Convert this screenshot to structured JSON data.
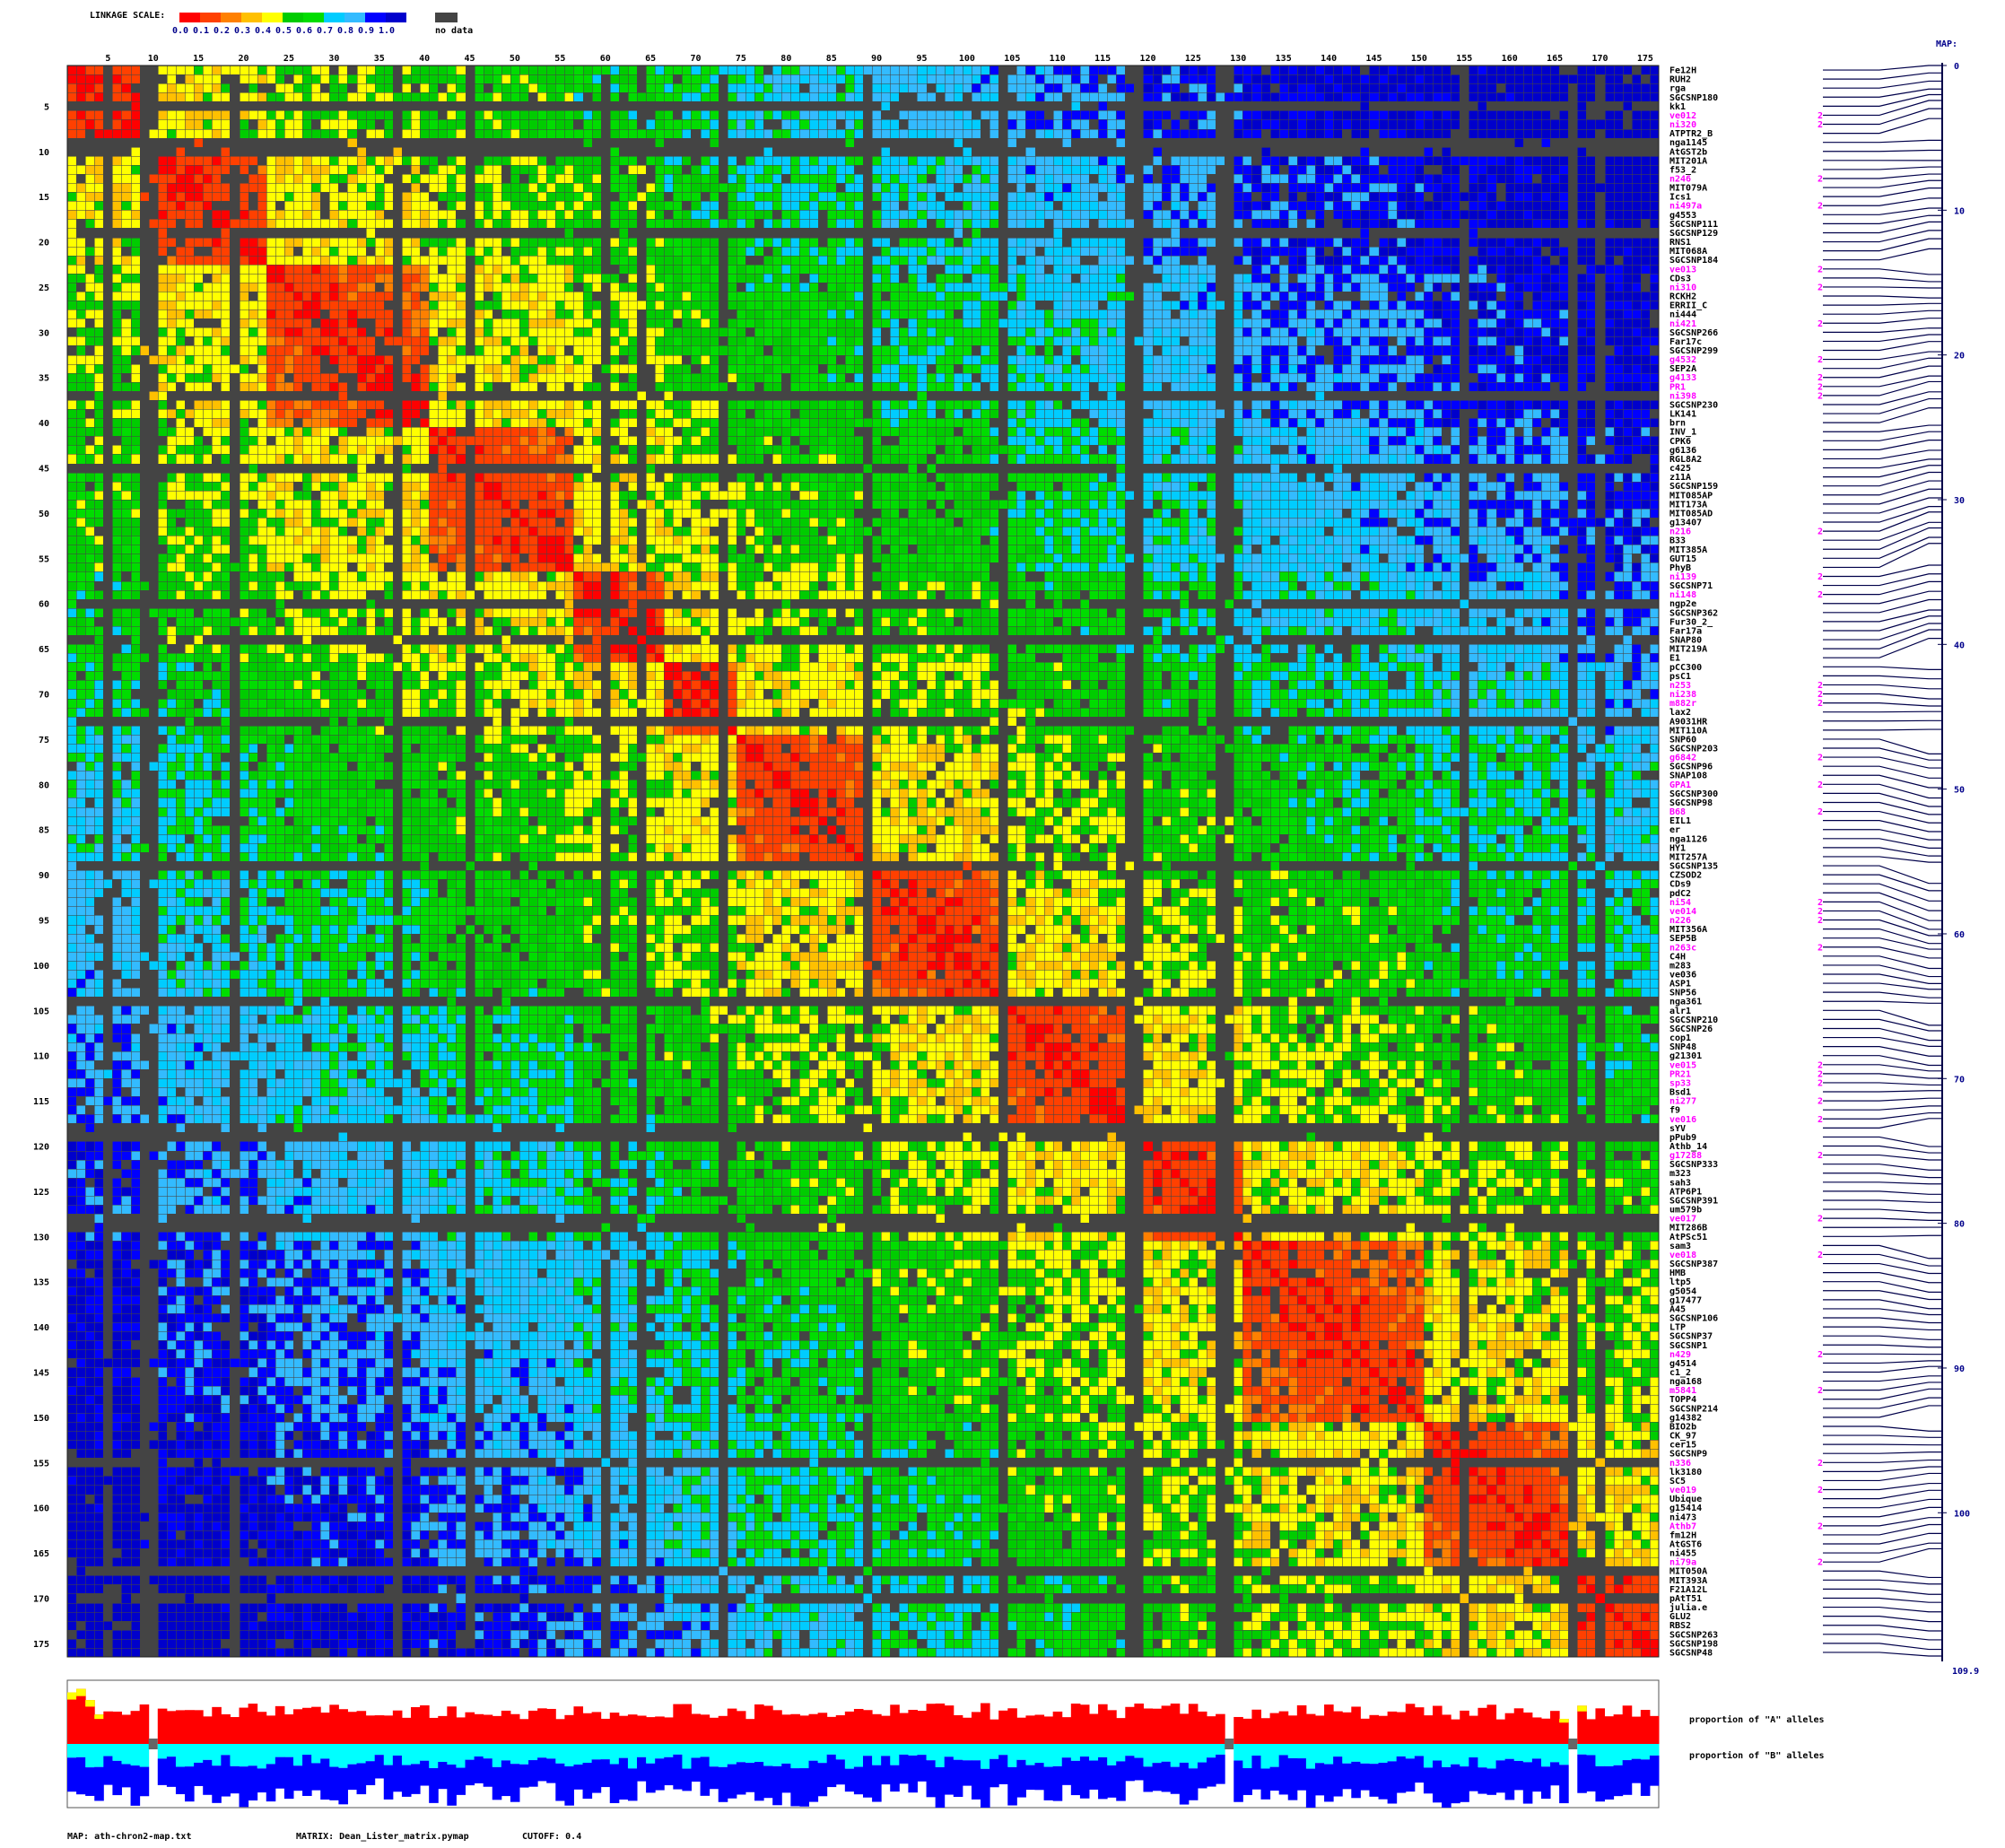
{
  "legend": {
    "title": "LINKAGE SCALE:",
    "ticks": [
      "0.0",
      "0.1",
      "0.2",
      "0.3",
      "0.4",
      "0.5",
      "0.6",
      "0.7",
      "0.8",
      "0.9",
      "1.0"
    ],
    "colors": [
      "#ff0000",
      "#ff4000",
      "#ff8000",
      "#ffc000",
      "#ffff00",
      "#00cc00",
      "#00dd00",
      "#00ccff",
      "#33bbff",
      "#0000ff",
      "#0000cc"
    ],
    "nodata_color": "#444444",
    "nodata_label": "no data"
  },
  "chart_data": {
    "type": "heatmap",
    "n_markers": 176,
    "x_ticks": [
      5,
      10,
      15,
      20,
      25,
      30,
      35,
      40,
      45,
      50,
      55,
      60,
      65,
      70,
      75,
      80,
      85,
      90,
      95,
      100,
      105,
      110,
      115,
      120,
      125,
      130,
      135,
      140,
      145,
      150,
      155,
      160,
      165,
      170,
      175
    ],
    "y_ticks": [
      5,
      10,
      15,
      20,
      25,
      30,
      35,
      40,
      45,
      50,
      55,
      60,
      65,
      70,
      75,
      80,
      85,
      90,
      95,
      100,
      105,
      110,
      115,
      120,
      125,
      130,
      135,
      140,
      145,
      150,
      155,
      160,
      165,
      170,
      175
    ],
    "value_range": [
      0.0,
      1.0
    ],
    "blocks": [
      [
        1,
        8
      ],
      [
        9,
        22
      ],
      [
        23,
        40
      ],
      [
        41,
        56
      ],
      [
        57,
        66
      ],
      [
        67,
        74
      ],
      [
        75,
        88
      ],
      [
        89,
        104
      ],
      [
        105,
        118
      ],
      [
        119,
        130
      ],
      [
        131,
        150
      ],
      [
        151,
        166
      ],
      [
        167,
        176
      ]
    ],
    "nodata_rows": [
      5,
      9,
      10,
      19,
      37,
      45,
      60,
      64,
      73,
      89,
      104,
      118,
      119,
      128,
      129,
      155,
      167,
      170
    ],
    "markers": [
      {
        "name": "Fe12H",
        "h": 0
      },
      {
        "name": "RUH2",
        "h": 0
      },
      {
        "name": "rga",
        "h": 0
      },
      {
        "name": "SGCSNP180",
        "h": 0
      },
      {
        "name": "kk1",
        "h": 0
      },
      {
        "name": "ve012",
        "h": 1
      },
      {
        "name": "ni320",
        "h": 1
      },
      {
        "name": "ATPTR2_B",
        "h": 0
      },
      {
        "name": "nga1145",
        "h": 0
      },
      {
        "name": "AtGST2b",
        "h": 0
      },
      {
        "name": "MIT201A",
        "h": 0
      },
      {
        "name": "f53_2",
        "h": 0
      },
      {
        "name": "n246",
        "h": 1
      },
      {
        "name": "MIT079A",
        "h": 0
      },
      {
        "name": "Ics1",
        "h": 0
      },
      {
        "name": "ni497a",
        "h": 1
      },
      {
        "name": "g4553",
        "h": 0
      },
      {
        "name": "SGCSNP111",
        "h": 0
      },
      {
        "name": "SGCSNP129",
        "h": 0
      },
      {
        "name": "RNS1",
        "h": 0
      },
      {
        "name": "MIT068A",
        "h": 0
      },
      {
        "name": "SGCSNP184",
        "h": 0
      },
      {
        "name": "ve013",
        "h": 1
      },
      {
        "name": "CDs3",
        "h": 0
      },
      {
        "name": "ni310",
        "h": 1
      },
      {
        "name": "RCKH2",
        "h": 0
      },
      {
        "name": "ERRII_C",
        "h": 0
      },
      {
        "name": "ni444",
        "h": 0
      },
      {
        "name": "ni421",
        "h": 1
      },
      {
        "name": "SGCSNP266",
        "h": 0
      },
      {
        "name": "Far17c",
        "h": 0
      },
      {
        "name": "SGCSNP299",
        "h": 0
      },
      {
        "name": "g4532",
        "h": 1
      },
      {
        "name": "SEP2A",
        "h": 0
      },
      {
        "name": "g4133",
        "h": 1
      },
      {
        "name": "PR1",
        "h": 1
      },
      {
        "name": "ni398",
        "h": 1
      },
      {
        "name": "SGCSNP230",
        "h": 0
      },
      {
        "name": "LK141",
        "h": 0
      },
      {
        "name": "brn",
        "h": 0
      },
      {
        "name": "INV_1",
        "h": 0
      },
      {
        "name": "CPK6",
        "h": 0
      },
      {
        "name": "g6136",
        "h": 0
      },
      {
        "name": "RGL8A2",
        "h": 0
      },
      {
        "name": "c425",
        "h": 0
      },
      {
        "name": "z11A",
        "h": 0
      },
      {
        "name": "SGCSNP159",
        "h": 0
      },
      {
        "name": "MIT085AP",
        "h": 0
      },
      {
        "name": "MIT173A",
        "h": 0
      },
      {
        "name": "MIT085AD",
        "h": 0
      },
      {
        "name": "g13407",
        "h": 0
      },
      {
        "name": "n216",
        "h": 1
      },
      {
        "name": "B33",
        "h": 0
      },
      {
        "name": "MIT385A",
        "h": 0
      },
      {
        "name": "GUT15",
        "h": 0
      },
      {
        "name": "PhyB",
        "h": 0
      },
      {
        "name": "ni139",
        "h": 1
      },
      {
        "name": "SGCSNP71",
        "h": 0
      },
      {
        "name": "ni148",
        "h": 1
      },
      {
        "name": "ngp2e",
        "h": 0
      },
      {
        "name": "SGCSNP362",
        "h": 0
      },
      {
        "name": "Fur30_2_",
        "h": 0
      },
      {
        "name": "Far17a",
        "h": 0
      },
      {
        "name": "SNAP80",
        "h": 0
      },
      {
        "name": "MIT219A",
        "h": 0
      },
      {
        "name": "E1",
        "h": 0
      },
      {
        "name": "pCC300",
        "h": 0
      },
      {
        "name": "psC1",
        "h": 0
      },
      {
        "name": "n253",
        "h": 1
      },
      {
        "name": "ni238",
        "h": 1
      },
      {
        "name": "m882r",
        "h": 1
      },
      {
        "name": "lax2",
        "h": 0
      },
      {
        "name": "A9031HR",
        "h": 0
      },
      {
        "name": "MIT110A",
        "h": 0
      },
      {
        "name": "SNP60",
        "h": 0
      },
      {
        "name": "SGCSNP203",
        "h": 0
      },
      {
        "name": "g6842",
        "h": 1
      },
      {
        "name": "SGCSNP96",
        "h": 0
      },
      {
        "name": "SNAP108",
        "h": 0
      },
      {
        "name": "GPA1",
        "h": 1
      },
      {
        "name": "SGCSNP300",
        "h": 0
      },
      {
        "name": "SGCSNP98",
        "h": 0
      },
      {
        "name": "B68",
        "h": 1
      },
      {
        "name": "EIL1",
        "h": 0
      },
      {
        "name": "er",
        "h": 0
      },
      {
        "name": "nga1126",
        "h": 0
      },
      {
        "name": "HY1",
        "h": 0
      },
      {
        "name": "MIT257A",
        "h": 0
      },
      {
        "name": "SGCSNP135",
        "h": 0
      },
      {
        "name": "CZSOD2",
        "h": 0
      },
      {
        "name": "CDs9",
        "h": 0
      },
      {
        "name": "pdC2",
        "h": 0
      },
      {
        "name": "ni54",
        "h": 1
      },
      {
        "name": "ve014",
        "h": 1
      },
      {
        "name": "n226",
        "h": 1
      },
      {
        "name": "MIT356A",
        "h": 0
      },
      {
        "name": "SEP5B",
        "h": 0
      },
      {
        "name": "n263c",
        "h": 1
      },
      {
        "name": "C4H",
        "h": 0
      },
      {
        "name": "m283",
        "h": 0
      },
      {
        "name": "ve036",
        "h": 0
      },
      {
        "name": "ASP1",
        "h": 0
      },
      {
        "name": "SNP56",
        "h": 0
      },
      {
        "name": "nga361",
        "h": 0
      },
      {
        "name": "alr1",
        "h": 0
      },
      {
        "name": "SGCSNP210",
        "h": 0
      },
      {
        "name": "SGCSNP26",
        "h": 0
      },
      {
        "name": "cop1",
        "h": 0
      },
      {
        "name": "SNP48",
        "h": 0
      },
      {
        "name": "g21301",
        "h": 0
      },
      {
        "name": "ve015",
        "h": 1
      },
      {
        "name": "PR21",
        "h": 1
      },
      {
        "name": "sp33",
        "h": 1
      },
      {
        "name": "Bsd1",
        "h": 0
      },
      {
        "name": "ni277",
        "h": 1
      },
      {
        "name": "f9",
        "h": 0
      },
      {
        "name": "ve016",
        "h": 1
      },
      {
        "name": "sYV",
        "h": 0
      },
      {
        "name": "pPub9",
        "h": 0
      },
      {
        "name": "Athb_14",
        "h": 0
      },
      {
        "name": "g17288",
        "h": 1
      },
      {
        "name": "SGCSNP333",
        "h": 0
      },
      {
        "name": "m323",
        "h": 0
      },
      {
        "name": "sah3",
        "h": 0
      },
      {
        "name": "ATP6P1",
        "h": 0
      },
      {
        "name": "SGCSNP391",
        "h": 0
      },
      {
        "name": "um579b",
        "h": 0
      },
      {
        "name": "ve017",
        "h": 1
      },
      {
        "name": "MIT286B",
        "h": 0
      },
      {
        "name": "AtPSc51",
        "h": 0
      },
      {
        "name": "sam3",
        "h": 0
      },
      {
        "name": "ve018",
        "h": 1
      },
      {
        "name": "SGCSNP387",
        "h": 0
      },
      {
        "name": "HMB",
        "h": 0
      },
      {
        "name": "ltp5",
        "h": 0
      },
      {
        "name": "g5054",
        "h": 0
      },
      {
        "name": "g17477",
        "h": 0
      },
      {
        "name": "A45",
        "h": 0
      },
      {
        "name": "SGCSNP106",
        "h": 0
      },
      {
        "name": "LTP",
        "h": 0
      },
      {
        "name": "SGCSNP37",
        "h": 0
      },
      {
        "name": "SGCSNP1",
        "h": 0
      },
      {
        "name": "n429",
        "h": 1
      },
      {
        "name": "g4514",
        "h": 0
      },
      {
        "name": "c1_2",
        "h": 0
      },
      {
        "name": "nga168",
        "h": 0
      },
      {
        "name": "m5841",
        "h": 1
      },
      {
        "name": "TOPP4",
        "h": 0
      },
      {
        "name": "SGCSNP214",
        "h": 0
      },
      {
        "name": "g14382",
        "h": 0
      },
      {
        "name": "BIO2b",
        "h": 0
      },
      {
        "name": "CK_97",
        "h": 0
      },
      {
        "name": "cer15",
        "h": 0
      },
      {
        "name": "SGCSNP9",
        "h": 0
      },
      {
        "name": "n336",
        "h": 1
      },
      {
        "name": "lk3180",
        "h": 0
      },
      {
        "name": "SC5",
        "h": 0
      },
      {
        "name": "ve019",
        "h": 1
      },
      {
        "name": "Ubique",
        "h": 0
      },
      {
        "name": "g15414",
        "h": 0
      },
      {
        "name": "ni473",
        "h": 0
      },
      {
        "name": "Athb7",
        "h": 1
      },
      {
        "name": "fm12H",
        "h": 0
      },
      {
        "name": "AtGST6",
        "h": 0
      },
      {
        "name": "ni455",
        "h": 0
      },
      {
        "name": "ni79a",
        "h": 1
      },
      {
        "name": "MIT050A",
        "h": 0
      },
      {
        "name": "MIT393A",
        "h": 0
      },
      {
        "name": "F21A12L",
        "h": 0
      },
      {
        "name": "pAtT51",
        "h": 0
      },
      {
        "name": "julia.e",
        "h": 0
      },
      {
        "name": "GLU2",
        "h": 0
      },
      {
        "name": "RBS2",
        "h": 0
      },
      {
        "name": "SGCSNP263",
        "h": 0
      },
      {
        "name": "SGCSNP198",
        "h": 0
      },
      {
        "name": "SGCSNP48",
        "h": 0
      }
    ],
    "map": {
      "title": "MAP:",
      "ticks": [
        0,
        10,
        20,
        30,
        40,
        50,
        60,
        70,
        80,
        90,
        100
      ],
      "end_label": "109.9",
      "max": 109.9,
      "flag_label": "2"
    },
    "allele_A_label": "proportion of \"A\" alleles",
    "allele_B_label": "proportion of \"B\" alleles",
    "allele_A_color": "#ff0000",
    "allele_B_color": "#0000ff",
    "allele_H_color": "#00ffff",
    "allele_M_color": "#ffff00"
  },
  "footer": {
    "map_text": "MAP: ath-chron2-map.txt",
    "matrix_text": "MATRIX: Dean_Lister_matrix.pymap",
    "cutoff_text": "CUTOFF: 0.4"
  },
  "colors": {
    "highlight": "#ff00ff",
    "normal": "#000000",
    "axis": "#00004a"
  }
}
